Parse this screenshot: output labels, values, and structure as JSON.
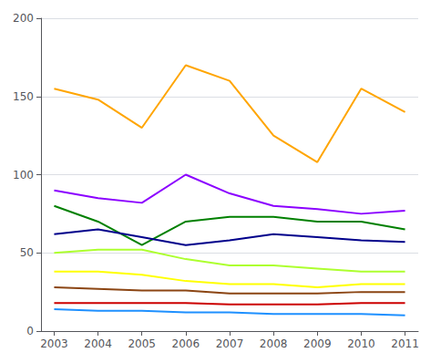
{
  "chart_data": {
    "type": "line",
    "x": [
      2003,
      2004,
      2005,
      2006,
      2007,
      2008,
      2009,
      2010,
      2011
    ],
    "series": [
      {
        "color": "#FFA500",
        "values": [
          155,
          148,
          130,
          170,
          160,
          125,
          108,
          155,
          140
        ]
      },
      {
        "color": "#8B00FF",
        "values": [
          90,
          85,
          82,
          100,
          88,
          80,
          78,
          75,
          77
        ]
      },
      {
        "color": "#008000",
        "values": [
          80,
          70,
          55,
          70,
          73,
          73,
          70,
          70,
          65
        ]
      },
      {
        "color": "#00008B",
        "values": [
          62,
          65,
          60,
          55,
          58,
          62,
          60,
          58,
          57
        ]
      },
      {
        "color": "#ADFF2F",
        "values": [
          50,
          52,
          52,
          46,
          42,
          42,
          40,
          38,
          38
        ]
      },
      {
        "color": "#FFFF00",
        "values": [
          38,
          38,
          36,
          32,
          30,
          30,
          28,
          30,
          30
        ]
      },
      {
        "color": "#8B4513",
        "values": [
          28,
          27,
          26,
          26,
          24,
          24,
          24,
          25,
          25
        ]
      },
      {
        "color": "#CC0000",
        "values": [
          18,
          18,
          18,
          18,
          17,
          17,
          17,
          18,
          18
        ]
      },
      {
        "color": "#1E90FF",
        "values": [
          14,
          13,
          13,
          12,
          12,
          11,
          11,
          11,
          10
        ]
      }
    ],
    "xlim": [
      2002.7,
      2011.3
    ],
    "xticks": [
      2003,
      2004,
      2005,
      2006,
      2007,
      2008,
      2009,
      2010,
      2011
    ],
    "ylim": [
      0,
      200
    ],
    "yticks": [
      0,
      50,
      100,
      150,
      200
    ],
    "grid": true
  }
}
